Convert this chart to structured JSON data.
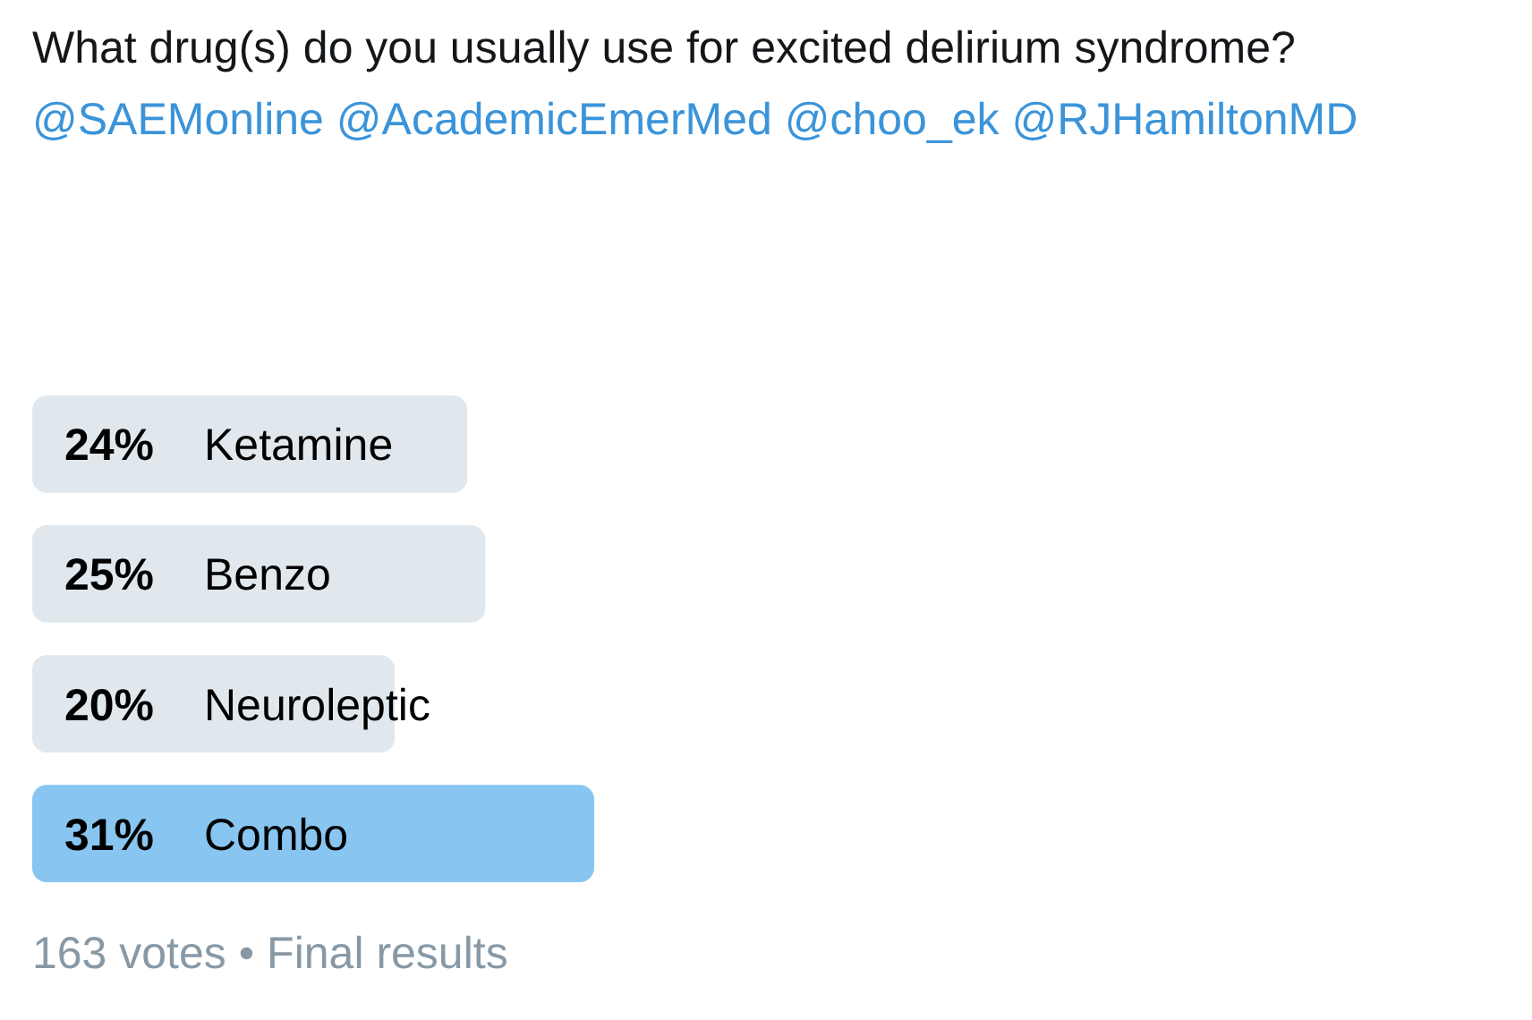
{
  "chart_data": {
    "type": "bar",
    "orientation": "horizontal",
    "title": "What drug(s) do you usually use for excited delirium syndrome?",
    "subtitle": "@SAEMonline @AcademicEmerMed @choo_ek @RJHamiltonMD",
    "categories": [
      "Ketamine",
      "Benzo",
      "Neuroleptic",
      "Combo"
    ],
    "values": [
      24,
      25,
      20,
      31
    ],
    "value_labels": [
      "24%",
      "25%",
      "20%",
      "31%"
    ],
    "colors": [
      "#e1e8ed",
      "#e1e8ed",
      "#e1e8ed",
      "#88c6f1"
    ],
    "annotations": [
      "163 votes • Final results"
    ]
  }
}
